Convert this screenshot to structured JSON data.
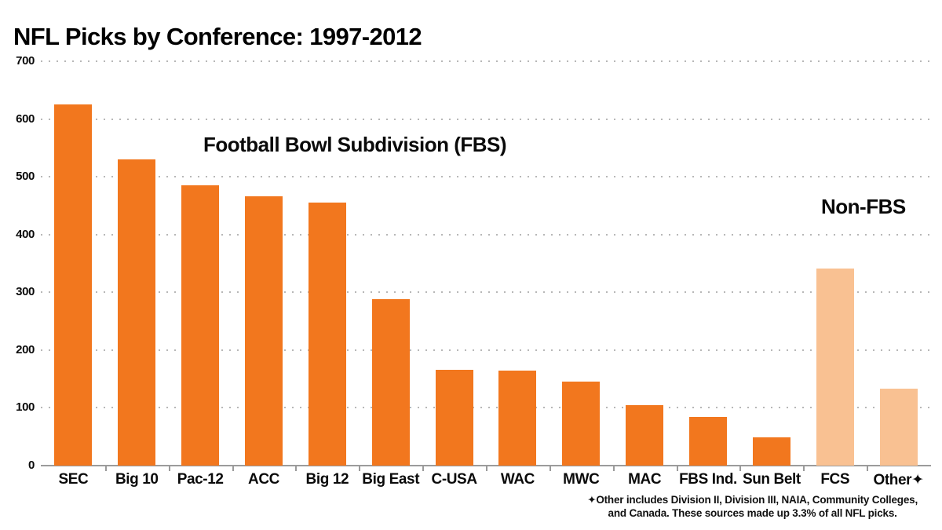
{
  "title": "NFL Picks by Conference: 1997-2012",
  "annotations": {
    "fbs_label": "Football Bowl Subdivision (FBS)",
    "non_fbs_label": "Non-FBS"
  },
  "footnote": {
    "line1": "✦Other includes Division II, Division III, NAIA, Community Colleges,",
    "line2": "and Canada. These sources made up 3.3% of all NFL picks."
  },
  "colors": {
    "fbs_bar": "#F2771E",
    "non_fbs_bar": "#F9C192",
    "axis": "#9b9b9b",
    "gridline": "#b7b7b7",
    "text": "#0a0a0a"
  },
  "chart_data": {
    "type": "bar",
    "title": "NFL Picks by Conference: 1997-2012",
    "categories": [
      "SEC",
      "Big 10",
      "Pac-12",
      "ACC",
      "Big 12",
      "Big East",
      "C-USA",
      "WAC",
      "MWC",
      "MAC",
      "FBS Ind.",
      "Sun Belt",
      "FCS",
      "Other✦"
    ],
    "values": [
      625,
      530,
      485,
      466,
      455,
      288,
      166,
      164,
      146,
      105,
      84,
      49,
      341,
      133
    ],
    "groups": [
      "FBS",
      "FBS",
      "FBS",
      "FBS",
      "FBS",
      "FBS",
      "FBS",
      "FBS",
      "FBS",
      "FBS",
      "FBS",
      "FBS",
      "Non-FBS",
      "Non-FBS"
    ],
    "xlabel": "",
    "ylabel": "",
    "ylim": [
      0,
      700
    ],
    "yticks": [
      0,
      100,
      200,
      300,
      400,
      500,
      600,
      700
    ],
    "grid": "horizontal-dotted",
    "legend": "none"
  }
}
